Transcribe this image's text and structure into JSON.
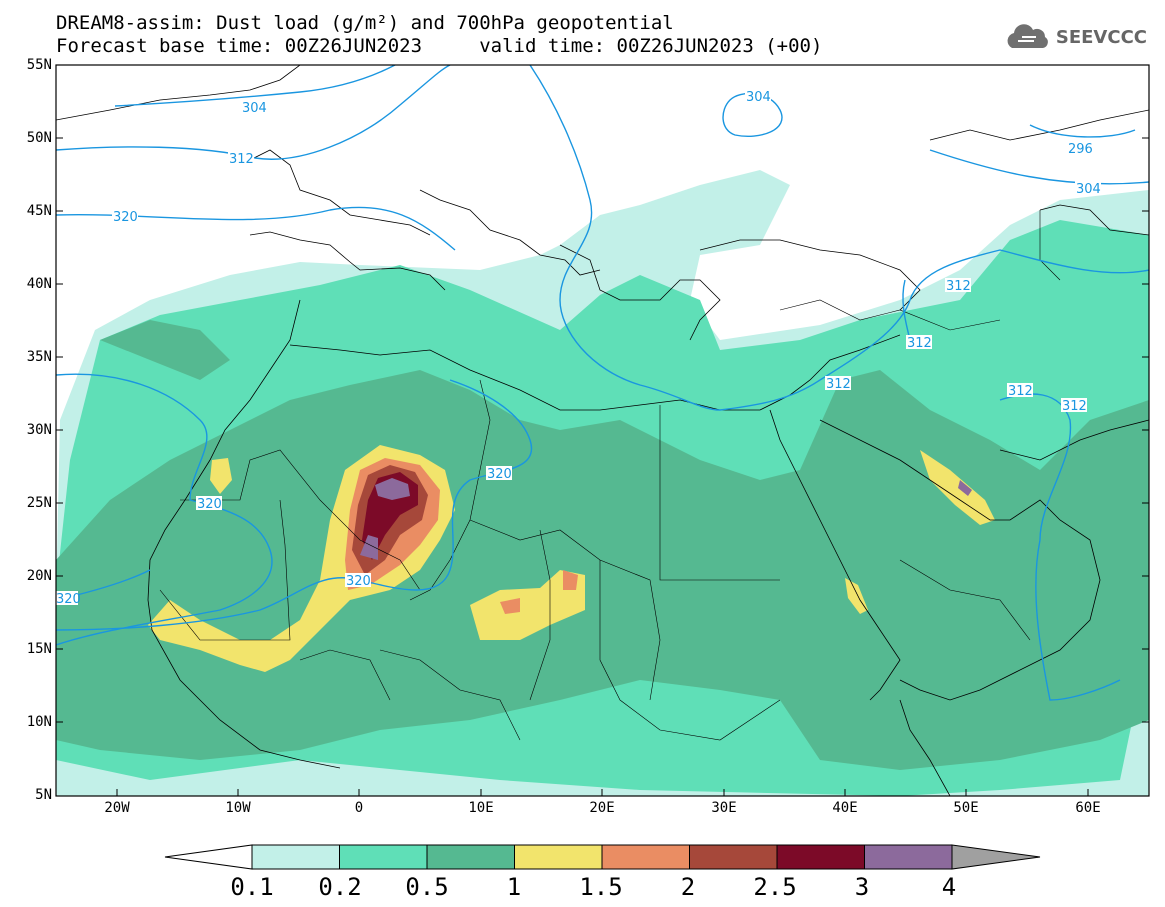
{
  "title": {
    "line1": "DREAM8-assim: Dust load (g/m²) and 700hPa geopotential",
    "line2": "Forecast base time: 00Z26JUN2023     valid time: 00Z26JUN2023 (+00)"
  },
  "logo": {
    "text": "SEEVCCC",
    "icon": "cloud-logo-icon"
  },
  "map": {
    "lon_range": [
      -25,
      65
    ],
    "lat_range": [
      5,
      55
    ],
    "lat_ticks": [
      "55N",
      "50N",
      "45N",
      "40N",
      "35N",
      "30N",
      "25N",
      "20N",
      "15N",
      "10N",
      "5N"
    ],
    "lon_ticks": [
      "20W",
      "10W",
      "0",
      "10E",
      "20E",
      "30E",
      "40E",
      "50E",
      "60E"
    ],
    "contour_color": "#1a96e0",
    "contour_labels": [
      "304",
      "312",
      "320",
      "304",
      "296",
      "304",
      "312",
      "312",
      "312",
      "312",
      "312",
      "320",
      "320",
      "320",
      "320"
    ]
  },
  "colorbar": {
    "labels": [
      "0.1",
      "0.2",
      "0.5",
      "1",
      "1.5",
      "2",
      "2.5",
      "3",
      "4"
    ],
    "colors": [
      "#c2f0e8",
      "#5fdfb7",
      "#55b991",
      "#f2e46c",
      "#ea8d63",
      "#a6483a",
      "#7c0a28",
      "#8c6a9c",
      "#a0a0a0"
    ]
  }
}
